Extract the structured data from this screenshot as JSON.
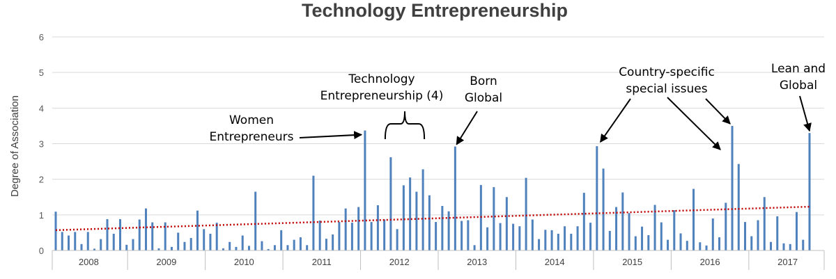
{
  "chart_data": {
    "type": "bar",
    "title": "Technology Entrepreneurship",
    "ylabel": "Degree of Association",
    "xlabel": "",
    "ylim": [
      0,
      6
    ],
    "yticks": [
      0,
      1,
      2,
      3,
      4,
      5,
      6
    ],
    "x_range": [
      2007.53,
      2017.47
    ],
    "x_ticks": [
      "2008",
      "2009",
      "2010",
      "2011",
      "2012",
      "2013",
      "2014",
      "2015",
      "2016",
      "2017"
    ],
    "grid": true,
    "colors": {
      "bars": "#4f81bd",
      "trend": "#c00000",
      "title": "#404040"
    },
    "trendline": {
      "style": "dotted",
      "y_start": 0.57,
      "y_end": 1.23
    },
    "series": [
      {
        "values": [
          1.09,
          0.52,
          0.42,
          0.52,
          0.18,
          0.52,
          0.05,
          0.32,
          0.88,
          0.47,
          0.88,
          0.16,
          0.32,
          0.87,
          1.18,
          0.79,
          0.06,
          0.79,
          0.1,
          0.5,
          0.24,
          0.35,
          1.12,
          0.6,
          0.47,
          0.78,
          0.06,
          0.24,
          0.1,
          0.42,
          0.13,
          1.65,
          0.26,
          0.04,
          0.15,
          0.57,
          0.15,
          0.3,
          0.37,
          0.15,
          2.1,
          0.84,
          0.33,
          0.45,
          0.8,
          1.18,
          0.78,
          1.22,
          3.37,
          0.8,
          1.27,
          0.87,
          2.62,
          0.6,
          1.83,
          2.05,
          1.65,
          2.28,
          1.55,
          0.8,
          1.25,
          1.1,
          2.92,
          0.83,
          0.85,
          0.15,
          1.84,
          0.65,
          1.78,
          0.77,
          1.5,
          0.75,
          0.68,
          2.04,
          0.87,
          0.32,
          0.58,
          0.57,
          0.47,
          0.68,
          0.47,
          0.68,
          1.62,
          0.78,
          2.93,
          2.3,
          0.55,
          1.22,
          1.63,
          1.05,
          0.4,
          0.67,
          0.43,
          1.28,
          0.79,
          0.3,
          1.13,
          0.48,
          0.27,
          1.73,
          0.23,
          0.14,
          0.9,
          0.37,
          1.34,
          3.5,
          2.43,
          0.8,
          0.4,
          0.85,
          1.5,
          0.24,
          0.96,
          0.2,
          0.18,
          1.08,
          0.3,
          3.3
        ]
      }
    ],
    "annotations": [
      {
        "lines": [
          "Women",
          "Entrepreneurs"
        ],
        "target_bar": 48
      },
      {
        "lines": [
          "Technology",
          "Entrepreneurship (4)"
        ],
        "bracket": [
          52,
          57
        ]
      },
      {
        "lines": [
          "Born",
          "Global"
        ],
        "target_bar": 62
      },
      {
        "lines": [
          "Country-specific",
          "special issues"
        ],
        "target_bars": [
          84,
          105
        ]
      },
      {
        "lines": [
          "Lean and",
          "Global"
        ],
        "target_bar": 117
      }
    ]
  }
}
